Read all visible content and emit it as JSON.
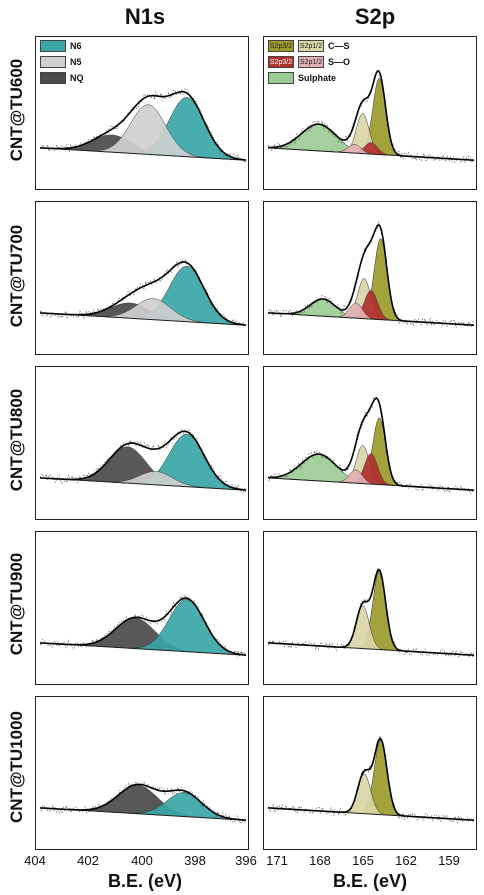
{
  "titles": {
    "left": "N1s",
    "right": "S2p"
  },
  "row_labels": [
    "CNT@TU600",
    "CNT@TU700",
    "CNT@TU800",
    "CNT@TU900",
    "CNT@TU1000"
  ],
  "axes": {
    "left_xlabel": "B.E. (eV)",
    "right_xlabel": "B.E. (eV)",
    "left_ticks": [
      "404",
      "402",
      "400",
      "398",
      "396"
    ],
    "right_ticks": [
      "171",
      "168",
      "165",
      "162",
      "159"
    ]
  },
  "legend_n1s": [
    "N6",
    "N5",
    "NQ"
  ],
  "legend_s2p": {
    "cs_a": "S2p3/2",
    "cs_b": "S2p1/2",
    "cs_label": "C—S",
    "so_a": "S2p3/2",
    "so_b": "S2p1/2",
    "so_label": "S—O",
    "sulphate": "Sulphate"
  },
  "colors": {
    "n6": "#3aa6a6",
    "n5": "#cfcfcf",
    "nq": "#4a4a4a",
    "cs_32": "#9c9a2c",
    "cs_12": "#d9d6a8",
    "so_32": "#b0302c",
    "so_12": "#e3b0b4",
    "sulphate": "#9ccc95"
  },
  "chart_data": [
    {
      "type": "area",
      "title": "N1s",
      "panel": "CNT@TU600",
      "xlabel": "B.E. (eV)",
      "xlim": [
        404,
        396
      ],
      "series": [
        {
          "name": "N6",
          "center": 398.3,
          "height": 0.62,
          "fwhm": 1.6
        },
        {
          "name": "N5",
          "center": 399.8,
          "height": 0.52,
          "fwhm": 1.6
        },
        {
          "name": "NQ",
          "center": 401.2,
          "height": 0.18,
          "fwhm": 1.8
        }
      ]
    },
    {
      "type": "area",
      "title": "N1s",
      "panel": "CNT@TU700",
      "xlabel": "B.E. (eV)",
      "xlim": [
        404,
        396
      ],
      "series": [
        {
          "name": "N6",
          "center": 398.3,
          "height": 0.58,
          "fwhm": 1.6
        },
        {
          "name": "N5",
          "center": 399.6,
          "height": 0.22,
          "fwhm": 1.6
        },
        {
          "name": "NQ",
          "center": 400.5,
          "height": 0.16,
          "fwhm": 1.8
        }
      ]
    },
    {
      "type": "area",
      "title": "N1s",
      "panel": "CNT@TU800",
      "xlabel": "B.E. (eV)",
      "xlim": [
        404,
        396
      ],
      "series": [
        {
          "name": "N6",
          "center": 398.3,
          "height": 0.55,
          "fwhm": 1.6
        },
        {
          "name": "N5",
          "center": 399.5,
          "height": 0.14,
          "fwhm": 1.5
        },
        {
          "name": "NQ",
          "center": 400.6,
          "height": 0.38,
          "fwhm": 1.7
        }
      ]
    },
    {
      "type": "area",
      "title": "N1s",
      "panel": "CNT@TU900",
      "xlabel": "B.E. (eV)",
      "xlim": [
        404,
        396
      ],
      "series": [
        {
          "name": "N6",
          "center": 398.3,
          "height": 0.55,
          "fwhm": 1.6
        },
        {
          "name": "NQ",
          "center": 400.3,
          "height": 0.32,
          "fwhm": 1.8
        }
      ]
    },
    {
      "type": "area",
      "title": "N1s",
      "panel": "CNT@TU1000",
      "xlabel": "B.E. (eV)",
      "xlim": [
        404,
        396
      ],
      "series": [
        {
          "name": "N6",
          "center": 398.4,
          "height": 0.25,
          "fwhm": 1.6
        },
        {
          "name": "NQ",
          "center": 400.2,
          "height": 0.3,
          "fwhm": 1.8
        }
      ]
    },
    {
      "type": "area",
      "title": "S2p",
      "panel": "CNT@TU600",
      "xlabel": "B.E. (eV)",
      "xlim": [
        172,
        157
      ],
      "series": [
        {
          "name": "C-S S2p3/2",
          "center": 163.9,
          "height": 0.8,
          "fwhm": 1.1
        },
        {
          "name": "C-S S2p1/2",
          "center": 165.1,
          "height": 0.42,
          "fwhm": 1.1
        },
        {
          "name": "S-O S2p3/2",
          "center": 164.5,
          "height": 0.12,
          "fwhm": 1.1
        },
        {
          "name": "S-O S2p1/2",
          "center": 165.7,
          "height": 0.09,
          "fwhm": 1.1
        },
        {
          "name": "Sulphate",
          "center": 168.3,
          "height": 0.28,
          "fwhm": 3.0
        }
      ]
    },
    {
      "type": "area",
      "title": "S2p",
      "panel": "CNT@TU700",
      "xlabel": "B.E. (eV)",
      "xlim": [
        172,
        157
      ],
      "series": [
        {
          "name": "C-S S2p3/2",
          "center": 163.8,
          "height": 0.85,
          "fwhm": 1.1
        },
        {
          "name": "C-S S2p1/2",
          "center": 165.0,
          "height": 0.42,
          "fwhm": 1.1
        },
        {
          "name": "S-O S2p3/2",
          "center": 164.5,
          "height": 0.3,
          "fwhm": 1.1
        },
        {
          "name": "S-O S2p1/2",
          "center": 165.6,
          "height": 0.16,
          "fwhm": 1.1
        },
        {
          "name": "Sulphate",
          "center": 168.0,
          "height": 0.18,
          "fwhm": 2.2
        }
      ]
    },
    {
      "type": "area",
      "title": "S2p",
      "panel": "CNT@TU800",
      "xlabel": "B.E. (eV)",
      "xlim": [
        172,
        157
      ],
      "series": [
        {
          "name": "C-S S2p3/2",
          "center": 163.9,
          "height": 0.7,
          "fwhm": 1.1
        },
        {
          "name": "C-S S2p1/2",
          "center": 165.1,
          "height": 0.4,
          "fwhm": 1.1
        },
        {
          "name": "S-O S2p3/2",
          "center": 164.5,
          "height": 0.32,
          "fwhm": 1.1
        },
        {
          "name": "S-O S2p1/2",
          "center": 165.6,
          "height": 0.14,
          "fwhm": 1.1
        },
        {
          "name": "Sulphate",
          "center": 168.3,
          "height": 0.28,
          "fwhm": 3.0
        }
      ]
    },
    {
      "type": "area",
      "title": "S2p",
      "panel": "CNT@TU900",
      "xlabel": "B.E. (eV)",
      "xlim": [
        172,
        157
      ],
      "series": [
        {
          "name": "C-S S2p3/2",
          "center": 163.9,
          "height": 0.82,
          "fwhm": 1.1
        },
        {
          "name": "C-S S2p1/2",
          "center": 165.1,
          "height": 0.45,
          "fwhm": 1.1
        }
      ]
    },
    {
      "type": "area",
      "title": "S2p",
      "panel": "CNT@TU1000",
      "xlabel": "B.E. (eV)",
      "xlim": [
        172,
        157
      ],
      "series": [
        {
          "name": "C-S S2p3/2",
          "center": 163.8,
          "height": 0.78,
          "fwhm": 1.1
        },
        {
          "name": "C-S S2p1/2",
          "center": 165.0,
          "height": 0.42,
          "fwhm": 1.1
        }
      ]
    }
  ]
}
